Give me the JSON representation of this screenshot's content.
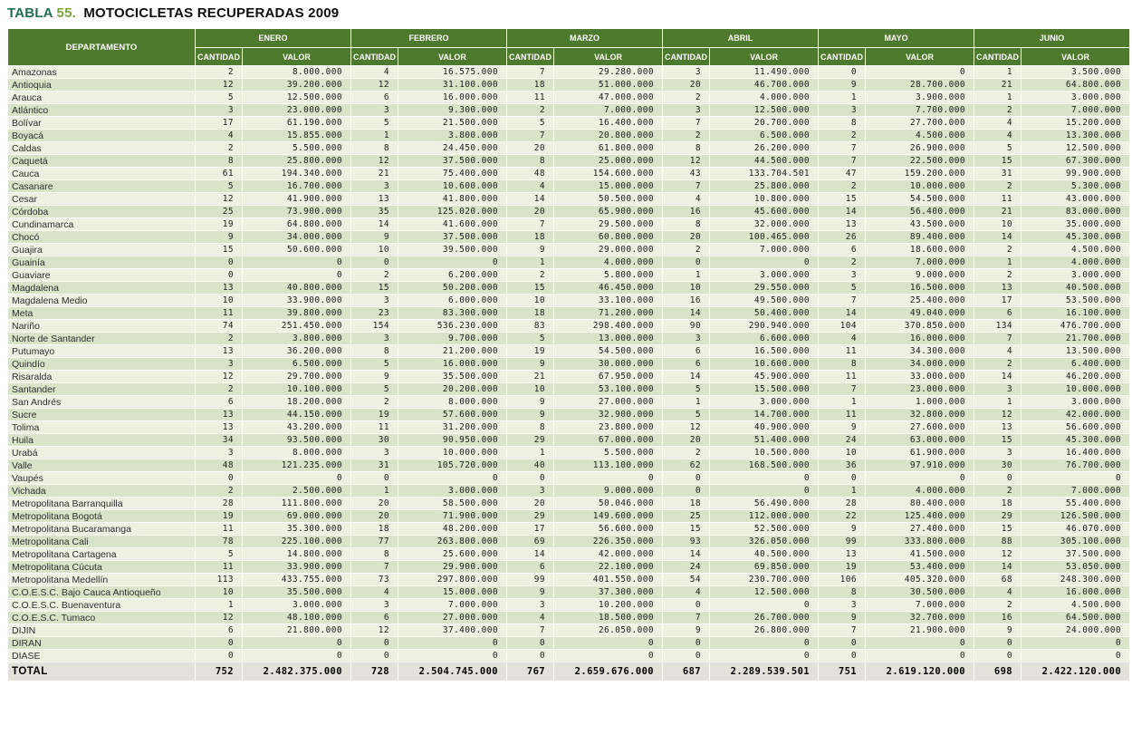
{
  "title": {
    "word": "TABLA",
    "number": "55.",
    "text": "MOTOCICLETAS RECUPERADAS 2009"
  },
  "colors": {
    "title_green": "#1f6e52",
    "title_number_green": "#7ca43f",
    "header_green": "#4d7a2c",
    "row_light": "#eef1e1",
    "row_dark": "#d9e3c7",
    "total_row_bg": "#e2e2da"
  },
  "table": {
    "department_header": "DEPARTAMENTO",
    "months": [
      "ENERO",
      "FEBRERO",
      "MARZO",
      "ABRIL",
      "MAYO",
      "JUNIO"
    ],
    "sub_headers": [
      "CANTIDAD",
      "VALOR"
    ],
    "total_label": "TOTAL",
    "rows": [
      {
        "name": "Amazonas",
        "values": [
          "2",
          "8.000.000",
          "4",
          "16.575.000",
          "7",
          "29.280.000",
          "3",
          "11.490.000",
          "0",
          "0",
          "1",
          "3.500.000"
        ]
      },
      {
        "name": "Antioquia",
        "values": [
          "12",
          "39.200.000",
          "12",
          "31.100.000",
          "18",
          "51.000.000",
          "20",
          "46.700.000",
          "9",
          "28.700.000",
          "21",
          "64.800.000"
        ]
      },
      {
        "name": "Arauca",
        "values": [
          "5",
          "12.500.000",
          "6",
          "16.000.000",
          "11",
          "47.000.000",
          "2",
          "4.000.000",
          "1",
          "3.900.000",
          "1",
          "3.000.000"
        ]
      },
      {
        "name": "Atlántico",
        "values": [
          "3",
          "23.000.000",
          "3",
          "9.300.000",
          "2",
          "7.000.000",
          "3",
          "12.500.000",
          "3",
          "7.700.000",
          "2",
          "7.000.000"
        ]
      },
      {
        "name": "Bolívar",
        "values": [
          "17",
          "61.190.000",
          "5",
          "21.500.000",
          "5",
          "16.400.000",
          "7",
          "20.700.000",
          "8",
          "27.700.000",
          "4",
          "15.200.000"
        ]
      },
      {
        "name": "Boyacá",
        "values": [
          "4",
          "15.855.000",
          "1",
          "3.800.000",
          "7",
          "20.800.000",
          "2",
          "6.500.000",
          "2",
          "4.500.000",
          "4",
          "13.300.000"
        ]
      },
      {
        "name": "Caldas",
        "values": [
          "2",
          "5.500.000",
          "8",
          "24.450.000",
          "20",
          "61.800.000",
          "8",
          "26.200.000",
          "7",
          "26.900.000",
          "5",
          "12.500.000"
        ]
      },
      {
        "name": "Caquetá",
        "values": [
          "8",
          "25.800.000",
          "12",
          "37.500.000",
          "8",
          "25.000.000",
          "12",
          "44.500.000",
          "7",
          "22.500.000",
          "15",
          "67.300.000"
        ]
      },
      {
        "name": "Cauca",
        "values": [
          "61",
          "194.340.000",
          "21",
          "75.400.000",
          "48",
          "154.600.000",
          "43",
          "133.704.501",
          "47",
          "159.200.000",
          "31",
          "99.900.000"
        ]
      },
      {
        "name": "Casanare",
        "values": [
          "5",
          "16.700.000",
          "3",
          "10.600.000",
          "4",
          "15.000.000",
          "7",
          "25.800.000",
          "2",
          "10.000.000",
          "2",
          "5.300.000"
        ]
      },
      {
        "name": "Cesar",
        "values": [
          "12",
          "41.900.000",
          "13",
          "41.800.000",
          "14",
          "50.500.000",
          "4",
          "10.800.000",
          "15",
          "54.500.000",
          "11",
          "43.000.000"
        ]
      },
      {
        "name": "Córdoba",
        "values": [
          "25",
          "73.900.000",
          "35",
          "125.020.000",
          "20",
          "65.900.000",
          "16",
          "45.600.000",
          "14",
          "56.400.000",
          "21",
          "83.000.000"
        ]
      },
      {
        "name": "Cundinamarca",
        "values": [
          "19",
          "64.800.000",
          "14",
          "41.600.000",
          "7",
          "29.500.000",
          "8",
          "32.000.000",
          "13",
          "43.500.000",
          "10",
          "35.000.000"
        ]
      },
      {
        "name": "Chocó",
        "values": [
          "9",
          "34.000.000",
          "9",
          "37.500.000",
          "18",
          "60.800.000",
          "20",
          "100.465.000",
          "26",
          "89.400.000",
          "14",
          "45.300.000"
        ]
      },
      {
        "name": "Guajira",
        "values": [
          "15",
          "50.600.000",
          "10",
          "39.500.000",
          "9",
          "29.000.000",
          "2",
          "7.000.000",
          "6",
          "18.600.000",
          "2",
          "4.500.000"
        ]
      },
      {
        "name": "Guainía",
        "values": [
          "0",
          "0",
          "0",
          "0",
          "1",
          "4.000.000",
          "0",
          "0",
          "2",
          "7.000.000",
          "1",
          "4.000.000"
        ]
      },
      {
        "name": "Guaviare",
        "values": [
          "0",
          "0",
          "2",
          "6.200.000",
          "2",
          "5.800.000",
          "1",
          "3.000.000",
          "3",
          "9.000.000",
          "2",
          "3.000.000"
        ]
      },
      {
        "name": "Magdalena",
        "values": [
          "13",
          "40.800.000",
          "15",
          "50.200.000",
          "15",
          "46.450.000",
          "10",
          "29.550.000",
          "5",
          "16.500.000",
          "13",
          "40.500.000"
        ]
      },
      {
        "name": "Magdalena Medio",
        "values": [
          "10",
          "33.900.000",
          "3",
          "6.000.000",
          "10",
          "33.100.000",
          "16",
          "49.500.000",
          "7",
          "25.400.000",
          "17",
          "53.500.000"
        ]
      },
      {
        "name": "Meta",
        "values": [
          "11",
          "39.800.000",
          "23",
          "83.300.000",
          "18",
          "71.200.000",
          "14",
          "50.400.000",
          "14",
          "49.040.000",
          "6",
          "16.100.000"
        ]
      },
      {
        "name": "Nariño",
        "values": [
          "74",
          "251.450.000",
          "154",
          "536.230.000",
          "83",
          "298.400.000",
          "90",
          "290.940.000",
          "104",
          "370.850.000",
          "134",
          "476.700.000"
        ]
      },
      {
        "name": "Norte de Santander",
        "values": [
          "2",
          "3.800.000",
          "3",
          "9.700.000",
          "5",
          "13.000.000",
          "3",
          "6.600.000",
          "4",
          "16.000.000",
          "7",
          "21.700.000"
        ]
      },
      {
        "name": "Putumayo",
        "values": [
          "13",
          "36.200.000",
          "8",
          "21.200.000",
          "19",
          "54.500.000",
          "6",
          "16.500.000",
          "11",
          "34.300.000",
          "4",
          "13.500.000"
        ]
      },
      {
        "name": "Quindío",
        "values": [
          "3",
          "6.500.000",
          "5",
          "16.000.000",
          "9",
          "30.000.000",
          "6",
          "10.600.000",
          "8",
          "34.000.000",
          "2",
          "6.400.000"
        ]
      },
      {
        "name": "Risaralda",
        "values": [
          "12",
          "29.700.000",
          "9",
          "35.500.000",
          "21",
          "67.950.000",
          "14",
          "45.900.000",
          "11",
          "33.000.000",
          "14",
          "46.200.000"
        ]
      },
      {
        "name": "Santander",
        "values": [
          "2",
          "10.100.000",
          "5",
          "20.200.000",
          "10",
          "53.100.000",
          "5",
          "15.500.000",
          "7",
          "23.000.000",
          "3",
          "10.000.000"
        ]
      },
      {
        "name": "San Andrés",
        "values": [
          "6",
          "18.200.000",
          "2",
          "8.000.000",
          "9",
          "27.000.000",
          "1",
          "3.000.000",
          "1",
          "1.000.000",
          "1",
          "3.000.000"
        ]
      },
      {
        "name": "Sucre",
        "values": [
          "13",
          "44.150.000",
          "19",
          "57.600.000",
          "9",
          "32.900.000",
          "5",
          "14.700.000",
          "11",
          "32.800.000",
          "12",
          "42.000.000"
        ]
      },
      {
        "name": "Tolima",
        "values": [
          "13",
          "43.200.000",
          "11",
          "31.200.000",
          "8",
          "23.800.000",
          "12",
          "40.900.000",
          "9",
          "27.600.000",
          "13",
          "56.600.000"
        ]
      },
      {
        "name": "Huila",
        "values": [
          "34",
          "93.500.000",
          "30",
          "90.950.000",
          "29",
          "67.000.000",
          "20",
          "51.400.000",
          "24",
          "63.000.000",
          "15",
          "45.300.000"
        ]
      },
      {
        "name": "Urabá",
        "values": [
          "3",
          "8.000.000",
          "3",
          "10.000.000",
          "1",
          "5.500.000",
          "2",
          "10.500.000",
          "10",
          "61.900.000",
          "3",
          "16.400.000"
        ]
      },
      {
        "name": "Valle",
        "values": [
          "48",
          "121.235.000",
          "31",
          "105.720.000",
          "40",
          "113.100.000",
          "62",
          "168.500.000",
          "36",
          "97.910.000",
          "30",
          "76.700.000"
        ]
      },
      {
        "name": "Vaupés",
        "values": [
          "0",
          "0",
          "0",
          "0",
          "0",
          "0",
          "0",
          "0",
          "0",
          "0",
          "0",
          "0"
        ]
      },
      {
        "name": "Vichada",
        "values": [
          "2",
          "2.500.000",
          "1",
          "3.000.000",
          "3",
          "9.000.000",
          "0",
          "0",
          "1",
          "4.000.000",
          "2",
          "7.000.000"
        ]
      },
      {
        "name": "Metropolitana Barranquilla",
        "values": [
          "28",
          "111.800.000",
          "20",
          "58.500.000",
          "20",
          "50.046.000",
          "18",
          "56.490.000",
          "28",
          "80.400.000",
          "18",
          "55.400.000"
        ]
      },
      {
        "name": "Metropolitana Bogotá",
        "values": [
          "19",
          "69.000.000",
          "20",
          "71.900.000",
          "29",
          "149.600.000",
          "25",
          "112.000.000",
          "22",
          "125.400.000",
          "29",
          "126.500.000"
        ]
      },
      {
        "name": "Metropolitana Bucaramanga",
        "values": [
          "11",
          "35.300.000",
          "18",
          "48.200.000",
          "17",
          "56.600.000",
          "15",
          "52.500.000",
          "9",
          "27.400.000",
          "15",
          "46.070.000"
        ]
      },
      {
        "name": "Metropolitana Cali",
        "values": [
          "78",
          "225.100.000",
          "77",
          "263.800.000",
          "69",
          "226.350.000",
          "93",
          "326.050.000",
          "99",
          "333.800.000",
          "88",
          "305.100.000"
        ]
      },
      {
        "name": "Metropolitana Cartagena",
        "values": [
          "5",
          "14.800.000",
          "8",
          "25.600.000",
          "14",
          "42.000.000",
          "14",
          "40.500.000",
          "13",
          "41.500.000",
          "12",
          "37.500.000"
        ]
      },
      {
        "name": "Metropolitana Cúcuta",
        "values": [
          "11",
          "33.900.000",
          "7",
          "29.900.000",
          "6",
          "22.100.000",
          "24",
          "69.850.000",
          "19",
          "53.400.000",
          "14",
          "53.050.000"
        ]
      },
      {
        "name": "Metropolitana Medellín",
        "values": [
          "113",
          "433.755.000",
          "73",
          "297.800.000",
          "99",
          "401.550.000",
          "54",
          "230.700.000",
          "106",
          "405.320.000",
          "68",
          "248.300.000"
        ]
      },
      {
        "name": "C.O.E.S.C. Bajo Cauca Antioqueño",
        "values": [
          "10",
          "35.500.000",
          "4",
          "15.000.000",
          "9",
          "37.300.000",
          "4",
          "12.500.000",
          "8",
          "30.500.000",
          "4",
          "16.000.000"
        ]
      },
      {
        "name": "C.O.E.S.C. Buenaventura",
        "values": [
          "1",
          "3.000.000",
          "3",
          "7.000.000",
          "3",
          "10.200.000",
          "0",
          "0",
          "3",
          "7.000.000",
          "2",
          "4.500.000"
        ]
      },
      {
        "name": "C.O.E.S.C. Tumaco",
        "values": [
          "12",
          "48.100.000",
          "6",
          "27.000.000",
          "4",
          "18.500.000",
          "7",
          "26.700.000",
          "9",
          "32.700.000",
          "16",
          "64.500.000"
        ]
      },
      {
        "name": "DIJIN",
        "values": [
          "6",
          "21.800.000",
          "12",
          "37.400.000",
          "7",
          "26.050.000",
          "9",
          "26.800.000",
          "7",
          "21.900.000",
          "9",
          "24.000.000"
        ]
      },
      {
        "name": "DIRAN",
        "values": [
          "0",
          "0",
          "0",
          "0",
          "0",
          "0",
          "0",
          "0",
          "0",
          "0",
          "0",
          "0"
        ]
      },
      {
        "name": "DIASE",
        "values": [
          "0",
          "0",
          "0",
          "0",
          "0",
          "0",
          "0",
          "0",
          "0",
          "0",
          "0",
          "0"
        ]
      }
    ],
    "total": [
      "752",
      "2.482.375.000",
      "728",
      "2.504.745.000",
      "767",
      "2.659.676.000",
      "687",
      "2.289.539.501",
      "751",
      "2.619.120.000",
      "698",
      "2.422.120.000"
    ]
  }
}
